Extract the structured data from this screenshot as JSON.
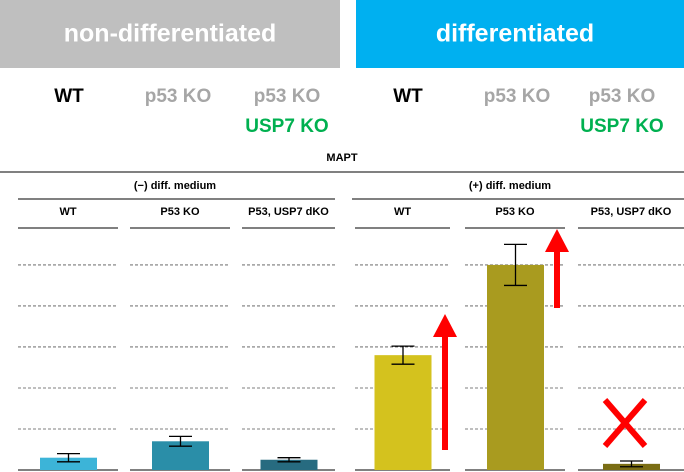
{
  "header": {
    "left": "non-differentiated",
    "right": "differentiated"
  },
  "genotypes": [
    {
      "line1": "WT"
    },
    {
      "line1": "p53 KO"
    },
    {
      "line1": "p53 KO",
      "line2": "USP7 KO"
    },
    {
      "line1": "WT"
    },
    {
      "line1": "p53 KO"
    },
    {
      "line1": "p53 KO",
      "line2": "USP7 KO"
    }
  ],
  "chart_data": {
    "type": "bar",
    "title": "MAPT",
    "groups": [
      "(−) diff. medium",
      "(+) diff. medium"
    ],
    "categories": [
      "WT",
      "P53 KO",
      "P53, USP7 dKO",
      "WT",
      "P53 KO",
      "P53, USP7 dKO"
    ],
    "values": [
      0.3,
      0.7,
      0.25,
      2.8,
      5.0,
      0.15
    ],
    "errors": [
      0.1,
      0.12,
      0.05,
      0.22,
      0.5,
      0.07
    ],
    "colors": [
      "#3cb4d8",
      "#2a8ea8",
      "#276b80",
      "#d4c21e",
      "#a99b1f",
      "#7a6d14"
    ],
    "ylim": [
      0,
      5.9
    ],
    "yticks": [
      1,
      2,
      3,
      4,
      5
    ],
    "grid": true
  }
}
